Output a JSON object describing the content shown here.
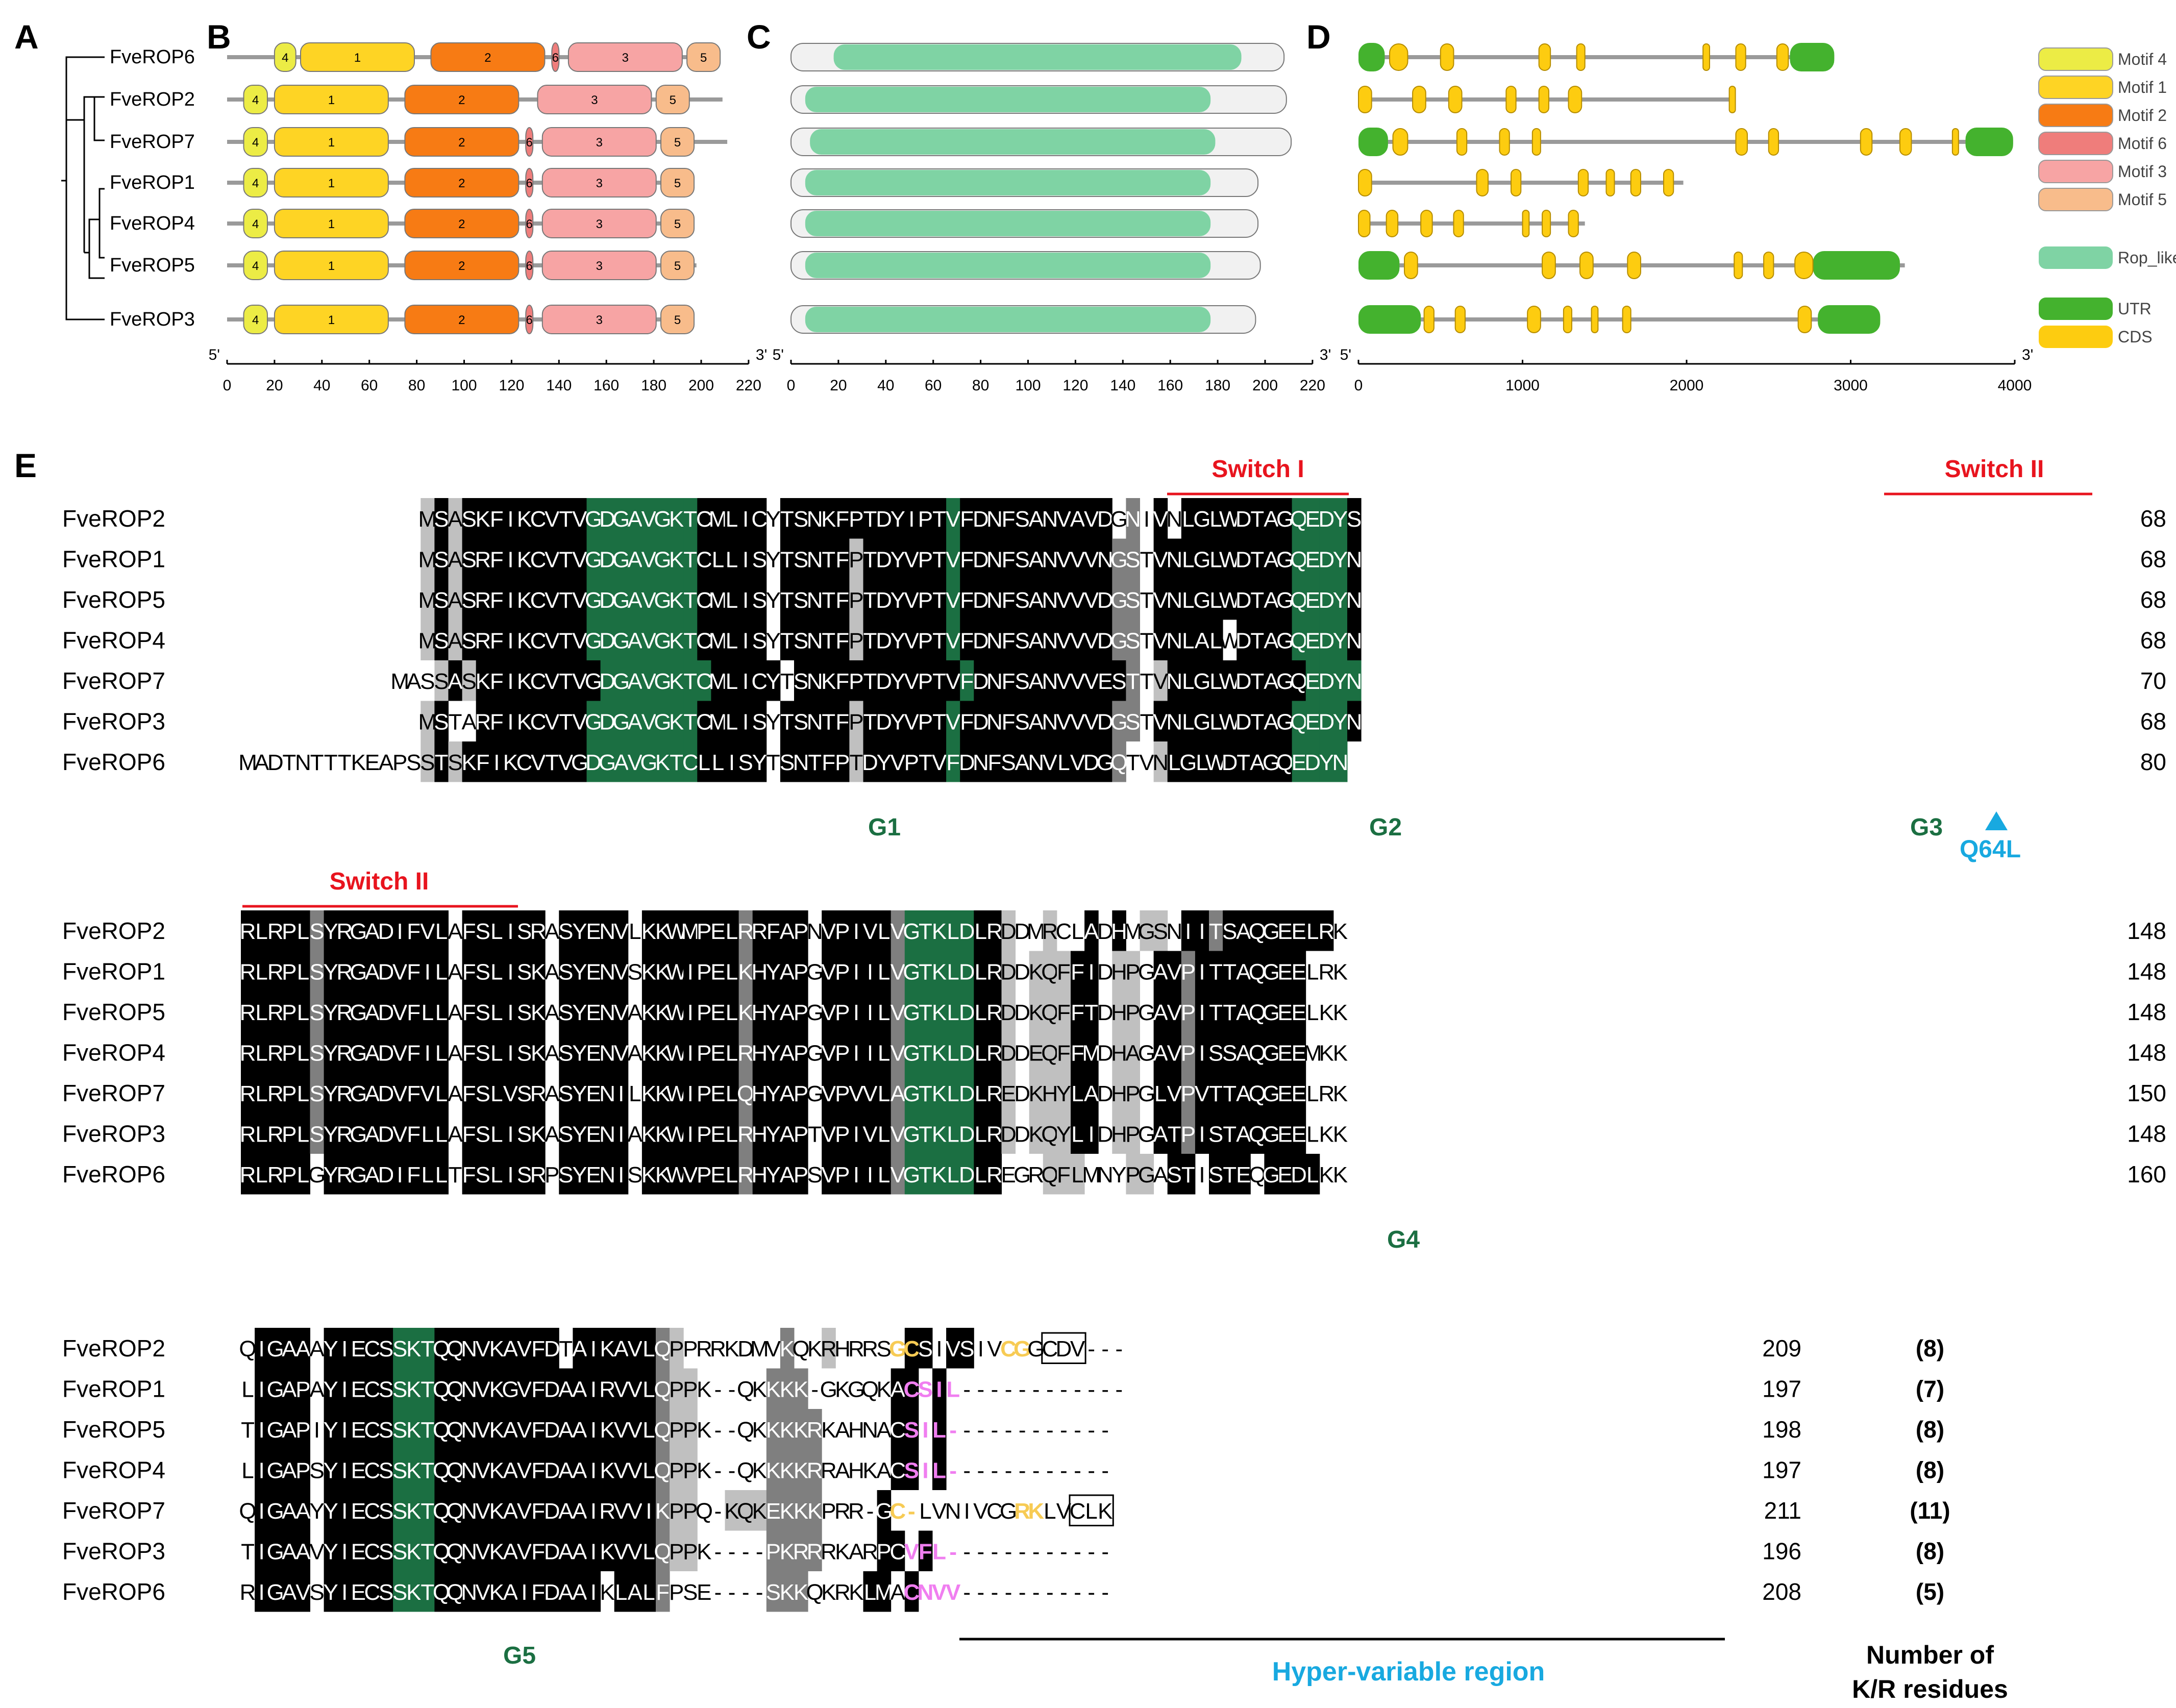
{
  "panels": {
    "A": "A",
    "B": "B",
    "C": "C",
    "D": "D",
    "E": "E"
  },
  "genes_tree": [
    "FveROP6",
    "FveROP2",
    "FveROP7",
    "FveROP1",
    "FveROP4",
    "FveROP5",
    "FveROP3"
  ],
  "motif_legend": [
    {
      "label": "Motif 4",
      "color": "#ecec45"
    },
    {
      "label": "Motif 1",
      "color": "#fed424"
    },
    {
      "label": "Motif 2",
      "color": "#f77b14"
    },
    {
      "label": "Motif 6",
      "color": "#ef7d7b"
    },
    {
      "label": "Motif 3",
      "color": "#f7a4a4"
    },
    {
      "label": "Motif 5",
      "color": "#f8bc8b"
    }
  ],
  "domain_legend": {
    "label": "Rop_like",
    "color": "#7fd3a4"
  },
  "gene_legend": [
    {
      "label": "UTR",
      "color": "#44b22e"
    },
    {
      "label": "CDS",
      "color": "#fdcc10"
    }
  ],
  "motifs": [
    {
      "gene": "FveROP6",
      "len": 208,
      "m": [
        [
          "4",
          20,
          29
        ],
        [
          "1",
          31,
          79
        ],
        [
          "2",
          86,
          134
        ],
        [
          "6",
          137,
          140
        ],
        [
          "3",
          144,
          192
        ],
        [
          "5",
          194,
          208
        ]
      ]
    },
    {
      "gene": "FveROP2",
      "len": 209,
      "m": [
        [
          "4",
          7,
          17
        ],
        [
          "1",
          20,
          68
        ],
        [
          "2",
          75,
          123
        ],
        [
          "3",
          131,
          179
        ],
        [
          "5",
          181,
          195
        ]
      ]
    },
    {
      "gene": "FveROP7",
      "len": 211,
      "m": [
        [
          "4",
          7,
          17
        ],
        [
          "1",
          20,
          68
        ],
        [
          "2",
          75,
          123
        ],
        [
          "6",
          126,
          129
        ],
        [
          "3",
          133,
          181
        ],
        [
          "5",
          183,
          197
        ]
      ]
    },
    {
      "gene": "FveROP1",
      "len": 197,
      "m": [
        [
          "4",
          7,
          17
        ],
        [
          "1",
          20,
          68
        ],
        [
          "2",
          75,
          123
        ],
        [
          "6",
          126,
          129
        ],
        [
          "3",
          133,
          181
        ],
        [
          "5",
          183,
          197
        ]
      ]
    },
    {
      "gene": "FveROP4",
      "len": 197,
      "m": [
        [
          "4",
          7,
          17
        ],
        [
          "1",
          20,
          68
        ],
        [
          "2",
          75,
          123
        ],
        [
          "6",
          126,
          129
        ],
        [
          "3",
          133,
          181
        ],
        [
          "5",
          183,
          197
        ]
      ]
    },
    {
      "gene": "FveROP5",
      "len": 198,
      "m": [
        [
          "4",
          7,
          17
        ],
        [
          "1",
          20,
          68
        ],
        [
          "2",
          75,
          123
        ],
        [
          "6",
          126,
          129
        ],
        [
          "3",
          133,
          181
        ],
        [
          "5",
          183,
          197
        ]
      ]
    },
    {
      "gene": "FveROP3",
      "len": 196,
      "m": [
        [
          "4",
          7,
          17
        ],
        [
          "1",
          20,
          68
        ],
        [
          "2",
          75,
          123
        ],
        [
          "6",
          126,
          129
        ],
        [
          "3",
          133,
          181
        ],
        [
          "5",
          183,
          197
        ]
      ]
    }
  ],
  "domains": [
    {
      "gene": "FveROP6",
      "len": 208,
      "start": 18,
      "end": 190
    },
    {
      "gene": "FveROP2",
      "len": 209,
      "start": 6,
      "end": 177
    },
    {
      "gene": "FveROP7",
      "len": 211,
      "start": 8,
      "end": 179
    },
    {
      "gene": "FveROP1",
      "len": 197,
      "start": 6,
      "end": 177
    },
    {
      "gene": "FveROP4",
      "len": 197,
      "start": 6,
      "end": 177
    },
    {
      "gene": "FveROP5",
      "len": 198,
      "start": 6,
      "end": 177
    },
    {
      "gene": "FveROP3",
      "len": 196,
      "start": 6,
      "end": 177
    }
  ],
  "gene_structs": [
    {
      "gene": "FveROP6",
      "len": 2900,
      "utr": [
        [
          0,
          160
        ],
        [
          2630,
          2900
        ]
      ],
      "cds": [
        [
          190,
          300
        ],
        [
          500,
          580
        ],
        [
          1100,
          1170
        ],
        [
          1330,
          1380
        ],
        [
          2100,
          2140
        ],
        [
          2300,
          2360
        ],
        [
          2550,
          2620
        ]
      ]
    },
    {
      "gene": "FveROP2",
      "len": 2280,
      "utr": [],
      "cds": [
        [
          0,
          80
        ],
        [
          330,
          410
        ],
        [
          550,
          630
        ],
        [
          900,
          960
        ],
        [
          1100,
          1160
        ],
        [
          1280,
          1360
        ],
        [
          2260,
          2280
        ]
      ]
    },
    {
      "gene": "FveROP7",
      "len": 3990,
      "utr": [
        [
          0,
          180
        ],
        [
          3700,
          3990
        ]
      ],
      "cds": [
        [
          210,
          300
        ],
        [
          600,
          660
        ],
        [
          860,
          920
        ],
        [
          1060,
          1110
        ],
        [
          2300,
          2370
        ],
        [
          2500,
          2560
        ],
        [
          3060,
          3130
        ],
        [
          3300,
          3370
        ],
        [
          3620,
          3650
        ]
      ]
    },
    {
      "gene": "FveROP1",
      "len": 1980,
      "utr": [],
      "cds": [
        [
          0,
          80
        ],
        [
          720,
          790
        ],
        [
          930,
          990
        ],
        [
          1340,
          1400
        ],
        [
          1510,
          1560
        ],
        [
          1660,
          1720
        ],
        [
          1860,
          1920
        ]
      ]
    },
    {
      "gene": "FveROP4",
      "len": 1380,
      "utr": [],
      "cds": [
        [
          0,
          70
        ],
        [
          170,
          240
        ],
        [
          380,
          450
        ],
        [
          580,
          640
        ],
        [
          1000,
          1040
        ],
        [
          1120,
          1170
        ],
        [
          1280,
          1340
        ]
      ]
    },
    {
      "gene": "FveROP5",
      "len": 3330,
      "utr": [
        [
          0,
          250
        ],
        [
          2770,
          3300
        ]
      ],
      "cds": [
        [
          280,
          360
        ],
        [
          1120,
          1200
        ],
        [
          1350,
          1430
        ],
        [
          1640,
          1720
        ],
        [
          2290,
          2340
        ],
        [
          2470,
          2530
        ],
        [
          2660,
          2770
        ]
      ]
    },
    {
      "gene": "FveROP3",
      "len": 3180,
      "utr": [
        [
          0,
          380
        ],
        [
          2800,
          3180
        ]
      ],
      "cds": [
        [
          400,
          460
        ],
        [
          590,
          650
        ],
        [
          1030,
          1110
        ],
        [
          1250,
          1300
        ],
        [
          1420,
          1460
        ],
        [
          1610,
          1660
        ],
        [
          2680,
          2760
        ]
      ]
    }
  ],
  "axisB": {
    "ticks": [
      "0",
      "20",
      "40",
      "60",
      "80",
      "100",
      "120",
      "140",
      "160",
      "180",
      "200",
      "220"
    ],
    "l5": "5'",
    "l3": "3'"
  },
  "axisD": {
    "ticks": [
      "0",
      "1000",
      "2000",
      "3000",
      "4000"
    ],
    "l5": "5'",
    "l3": "3'"
  },
  "shading_colors": {
    "black": "#000000",
    "dark": "#7f7f7f",
    "light": "#c0c0c0",
    "green": "#1b6f42",
    "hl_text": "#b8bdbd"
  },
  "blocks": [
    {
      "names": [
        "FveROP2",
        "FveROP1",
        "FveROP5",
        "FveROP4",
        "FveROP7",
        "FveROP3",
        "FveROP6"
      ],
      "seqs": [
        "-------------MSASKFIKCVTVGDGAVGKTCMLICYTSNKFPTDYIPTVFDNFSANVAVDGNIVNLGLWDTAGQEDYS",
        "-------------MSASRFIKCVTVGDGAVGKTCLLISYTSNTFPTDYVPTVFDNFSANVVVNGSTVNLGLWDTAGQEDYN",
        "-------------MSASRFIKCVTVGDGAVGKTCMLISYTSNTFPTDYVPTVFDNFSANVVVDGSTVNLGLWDTAGQEDYN",
        "-------------MSASRFIKCVTVGDGAVGKTCMLISYTSNTFPTDYVPTVFDNFSANVVVDGSTVNLALWDTAGQEDYN",
        "-----------MASSASKFIKCVTVGDGAVGKTCMLICYTSNKFPTDYVPTVFDNFSANVVVESTTVNLGLWDTAGQEDYN",
        "-------------MSTARFIKCVTVGDGAVGKTCMLISYTSNTFPTDYVPTVFDNFSANVVVDGSTVNLGLWDTAGQEDYN",
        "MADTNTTTKEAPSSTSKFIKCVTVGDGAVGKTCLLISYTSNTFPTDYVPTVFDNFSANVLVDGQTVNLGLWDTAGQEDYN"
      ],
      "nums": [
        "68",
        "68",
        "68",
        "68",
        "70",
        "68",
        "80"
      ],
      "shade": [
        "dddddddddddddLbLbbbbbbbbbGGGGGGGGbbbbbwbbbbbbbbbbbbGbbbbbbbbbbbwDwbwbbbbbbbbGGGGbbbb",
        "dddddddddddddLbLbbbbbbbbbGGGGGGGGbbbbbwbbbbbLbbbbbbGbbbbbbbbbbbDDwbbbbbbbbbbGGGGbbbD",
        "dddddddddddddLbLbbbbbbbbbGGGGGGGGbbbbbwbbbbbLbbbbbbGbbbbbbbbbbbDDwbbbbbbbbbbGGGGbbbD",
        "dddddddddddddLbLbbbbbbbbbGGGGGGGGbbbbbwbbbbbLbbbbbbGbbbbbbbbbbbDDwbbbbbwbbbbGGGGbbbD",
        "dddddddddddwwwLbLbbbbbbbbbGGGGGGGGbbbbbwbbbbbbbbbbbbGbbbbbbbbbbbDwLbbbbbbbbbbGGGGbbbD",
        "dddddddddddddLbwwbbbbbbbbGGGGGGGGbbbbbwbbbbbLbbbbbbGbbbbbbbbbbbDDwbbbbbbbbbbGGGGbbbD",
        "wwwwwwwwwwwwwLbLbbbbbbbbbGGGGGGGGbbbbbwbbbbbLbbbbbbGbbbbbbbbbbbDwwLbbbbbbbbbGGGGbbbD"
      ]
    },
    {
      "names": [
        "FveROP2",
        "FveROP1",
        "FveROP5",
        "FveROP4",
        "FveROP7",
        "FveROP3",
        "FveROP6"
      ],
      "seqs": [
        "RLRPLSYRGADIFVLAFSLISRASYENVLKKWMPELRRFAPNVPIVLVGTKLDLRDDMRCLADHMGSNIITSAQGEELRK",
        "RLRPLSYRGADVFILAFSLISKASYENVSKKWIPELKHYAPGVPIILVGTKLDLRDDKQFFIDHPGAVPITTAQGEELRK",
        "RLRPLSYRGADVFLLAFSLISKASYENVAKKWIPELKHYAPGVPIILVGTKLDLRDDKQFFTDHPGAVPITTAQGEELKK",
        "RLRPLSYRGADVFILAFSLISKASYENVAKKWIPELRHYAPGVPIILVGTKLDLRDDEQFFMDHAGAVPISSAQGEEMKK",
        "RLRPLSYRGADVFVLAFSLVSRASYENILKKWIPELQHYAPGVPVVLAGTKLDLREDKHYLADHPGLVPVTTAQGEELRK",
        "RLRPLSYRGADVFLLAFSLISKASYENIAKKWIPELRHYAPTVPIVLVGTKLDLRDDKQYLIDHPGATPISTAQGEELKK",
        "RLRPLGYRGADIFLLTFSLISRPSYENISKKWVPELRHYAPSVPIILVGTKLDLREGRQFLMNYPGASTISTEQGEDLKK"
      ],
      "nums": [
        "148",
        "148",
        "148",
        "148",
        "150",
        "148",
        "160"
      ],
      "shade": [
        "bbbbbDbbbbbbbbbwbbbbbbwbbbbbwbbbbbbbDbbbbwbbbbbDGGGGGbbLwwLwwbwbwLLwbbDbbbbbbbb",
        "bbbbbDbbbbbbbbbwbbbbbbwbbbbbwbbbbbbbDbbbbwbbbbbDGGGGGbbLwLLLbbwLLwbbDbbbbbbbb",
        "bbbbbDbbbbbbbbbwbbbbbbwbbbbbwbbbbbbbDbbbbwbbbbbDGGGGGbbLwLLLbbwLLwbbDbbbbbbbb",
        "bbbbbDbbbbbbbbbwbbbbbbwbbbbbwbbbbbbbDbbbbwbbbbbDGGGGGbbLwLLLbbwLLwbbDbbbbbbbb",
        "bbbbbDbbbbbbbbbwbbbbbbwbbbbbwbbbbbbbDbbbbwbbbbbDGGGGGbbLwLLLbbwLLwbbDbbbbbbbb",
        "bbbbbDbbbbbbbbbwbbbbbbwbbbbbwbbbbbbbDbbbbwbbbbbDGGGGGbbLwLLLbbwLLwbbDbbbbbbbb",
        "bbbbbwbbbbbbbbbwbbbbbbwbbbbbwbbbbbbbDbbbbwbbbbbDGGGGGbbwwwLLLwwwLLwbbwbbbwbbbb"
      ]
    },
    {
      "names": [
        "FveROP2",
        "FveROP1",
        "FveROP5",
        "FveROP4",
        "FveROP7",
        "FveROP3",
        "FveROP6"
      ],
      "seqs": [
        "QIGAAAYIECSSKTQQNVKAVFDTAIKAVLQPPRRKDMVKQKRHRRSGCSIVSIVCGGCDV---",
        "LIGAPAYIECSSKTQQNVKGVFDAAIRVVLQPPK--QKKKK-GKGQKACSIL------------",
        "TIGAPIYIECSSKTQQNVKAVFDAAIKVVLQPPK--QKKKKRKAHNACSIL------------",
        "LIGAPSYIECSSKTQQNVKAVFDAAIKVVLQPPK--QKKKKRRAHKACSIL------------",
        "QIGAAYYIECSSKTQQNVKAVFDAAIRVVIKPPQ-KQKEKKKPRR-GC-LVNIVCGRKLVCLK",
        "TIGAAVYIECSSKTQQNVKAVFDAAIKVVLQPPK----PKRRRKARPCVFL------------",
        "RIGAVSYIECSSKTQQNVKAIFDAAIKLALFPSE----SKKQKRKLMACNVV-----------"
      ],
      "nums": [
        "209",
        "197",
        "198",
        "197",
        "211",
        "196",
        "208"
      ],
      "kr": [
        "(8)",
        "(7)",
        "(8)",
        "(8)",
        "(11)",
        "(8)",
        "(5)"
      ],
      "shade": [
        "wbbbbwbbbbbGGGbbbbbbbbbwbbbbbbDLwwwwwwwDwwLwwwwwbbwbbwwwwwwwwwwww",
        "wbbbbwbbbbbGGGbbbbbbbbbbbbbbbbDLLwwwwwDDDwwwwwwbbwbwwwwwwwwwwww",
        "wbbbbwbbbbbGGGbbbbbbbbbbbbbbbbDLLwwwwwDDDDwwwwwbbwbwwwwwwwwwwww",
        "wbbbbwbbbbbGGGbbbbbbbbbbbbbbbbDLLwwwwwDDDDwwwwwbbwbwwwwwwwwwwww",
        "wbbbbwbbbbbGGGbbbbbbbbbbbbbbbbDLLwwLLLDDDDwwwwbwbwwwwwwwwwwwwww",
        "wbbbbwbbbbbGGGbbbbbbbbbbbbbbbbDLLwwwwwDDDDwwwwbbwbwwwwwwwwwwwww",
        "wbbbbwbbbbbGGGbbbbbbbbbbbbwbbbDwwwwwwwDDDwwwwbbwbwwwwwwwwwwwwww"
      ],
      "colored": [
        "wwwwwwwwwwwwwwwwwwwwwwwwwwwwwwwwwwwwwwwwwwwwwwwYYwwwwwwYYwwwwwwww",
        "wwwwwwwwwwwwwwwwwwwwwwwwwwwwwwwwwwwwwwwwwwwwwwwwPPPPwwwwwwwwwwwww",
        "wwwwwwwwwwwwwwwwwwwwwwwwwwwwwwwwwwwwwwwwwwwwwwwwPPPPwwwwwwwwwwwww",
        "wwwwwwwwwwwwwwwwwwwwwwwwwwwwwwwwwwwwwwwwwwwwwwwwPPPPwwwwwwwwwwwww",
        "wwwwwwwwwwwwwwwwwwwwwwwwwwwwwwwwwwwwwwwwwwwwwwwYYwwwwwwwYYwwwwwww",
        "wwwwwwwwwwwwwwwwwwwwwwwwwwwwwwwwwwwwwwwwwwwwwwwwPPPPwwwwwwwwwwwww",
        "wwwwwwwwwwwwwwwwwwwwwwwwwwwwwwwwwwwwwwwwwwwwwwwwPPPPwwwwwwwwwwwww"
      ]
    }
  ],
  "annotations": {
    "switch1": "Switch I",
    "switch2_a": "Switch II",
    "switch2_b": "Switch II",
    "g1": "G1",
    "g2": "G2",
    "g3": "G3",
    "g4": "G4",
    "g5": "G5",
    "q64l": "Q64L",
    "hvr": "Hyper-variable region",
    "kr_title_1": "Number of",
    "kr_title_2": "K/R residues",
    "red": "#e8141e",
    "green_text": "#1b6f42",
    "cyan": "#18a9e0",
    "yellow_res": "#f7cb54",
    "pink_res": "#f07ef0"
  }
}
